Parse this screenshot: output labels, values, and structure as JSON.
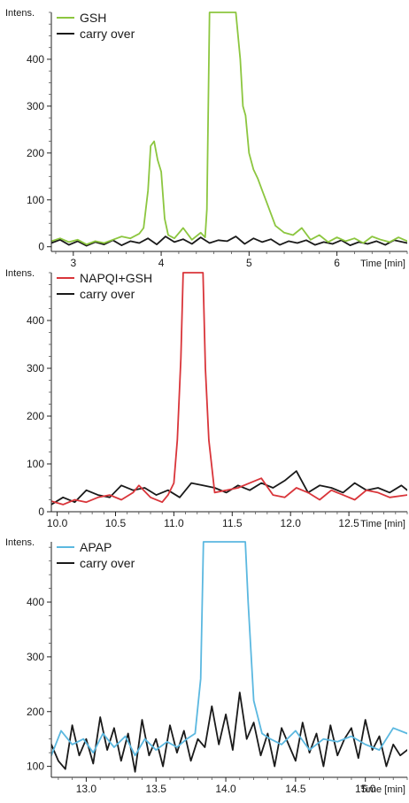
{
  "chart_data": [
    {
      "type": "line",
      "ylabel": "Intens.",
      "xlabel": "Time [min]",
      "xlim": [
        2.75,
        6.8
      ],
      "ylim": [
        -10,
        500
      ],
      "xticks": [
        3,
        4,
        5,
        6
      ],
      "yticks": [
        0,
        100,
        200,
        300,
        400
      ],
      "legend_position": "top-left",
      "series": [
        {
          "name": "GSH",
          "color": "#8cc63f",
          "x": [
            2.75,
            2.85,
            2.95,
            3.05,
            3.15,
            3.25,
            3.35,
            3.45,
            3.55,
            3.65,
            3.75,
            3.8,
            3.85,
            3.88,
            3.92,
            3.96,
            4.0,
            4.04,
            4.08,
            4.15,
            4.25,
            4.35,
            4.45,
            4.5,
            4.52,
            4.55,
            4.58,
            4.7,
            4.85,
            4.9,
            4.93,
            4.96,
            5.0,
            5.05,
            5.1,
            5.15,
            5.2,
            5.25,
            5.3,
            5.4,
            5.5,
            5.6,
            5.7,
            5.8,
            5.9,
            6.0,
            6.1,
            6.2,
            6.3,
            6.4,
            6.5,
            6.6,
            6.7,
            6.8
          ],
          "values": [
            12,
            18,
            10,
            15,
            5,
            12,
            8,
            15,
            22,
            18,
            28,
            40,
            120,
            215,
            225,
            185,
            160,
            60,
            25,
            18,
            40,
            15,
            30,
            20,
            80,
            500,
            500,
            500,
            500,
            400,
            300,
            280,
            200,
            165,
            145,
            120,
            95,
            70,
            45,
            30,
            25,
            40,
            15,
            25,
            10,
            20,
            12,
            18,
            8,
            22,
            15,
            10,
            20,
            12
          ]
        },
        {
          "name": "carry over",
          "color": "#1a1a1a",
          "x": [
            2.75,
            2.85,
            2.95,
            3.05,
            3.15,
            3.25,
            3.35,
            3.45,
            3.55,
            3.65,
            3.75,
            3.85,
            3.95,
            4.05,
            4.15,
            4.25,
            4.35,
            4.45,
            4.55,
            4.65,
            4.75,
            4.85,
            4.95,
            5.05,
            5.15,
            5.25,
            5.35,
            5.45,
            5.55,
            5.65,
            5.75,
            5.85,
            5.95,
            6.05,
            6.15,
            6.25,
            6.35,
            6.45,
            6.55,
            6.65,
            6.8
          ],
          "values": [
            8,
            15,
            4,
            12,
            2,
            10,
            5,
            14,
            3,
            12,
            8,
            18,
            5,
            22,
            10,
            16,
            6,
            20,
            8,
            14,
            12,
            22,
            6,
            18,
            10,
            16,
            4,
            12,
            8,
            14,
            4,
            10,
            6,
            14,
            3,
            10,
            6,
            12,
            4,
            14,
            8
          ]
        }
      ]
    },
    {
      "type": "line",
      "ylabel": "Intens.",
      "xlabel": "Time [min]",
      "xlim": [
        9.95,
        13.0
      ],
      "ylim": [
        0,
        500
      ],
      "xticks": [
        10.0,
        10.5,
        11.0,
        11.5,
        12.0,
        12.5
      ],
      "xtick_labels": [
        "10.0",
        "10.5",
        "11.0",
        "11.5",
        "12.0",
        "12.5"
      ],
      "yticks": [
        0,
        100,
        200,
        300,
        400
      ],
      "legend_position": "top-left",
      "series": [
        {
          "name": "NAPQI+GSH",
          "color": "#d9353a",
          "x": [
            9.95,
            10.05,
            10.15,
            10.25,
            10.35,
            10.45,
            10.55,
            10.65,
            10.7,
            10.8,
            10.9,
            10.95,
            11.0,
            11.03,
            11.06,
            11.08,
            11.1,
            11.12,
            11.25,
            11.27,
            11.3,
            11.35,
            11.45,
            11.55,
            11.65,
            11.75,
            11.85,
            11.95,
            12.05,
            12.15,
            12.25,
            12.35,
            12.45,
            12.55,
            12.65,
            12.75,
            12.85,
            13.0
          ],
          "values": [
            22,
            15,
            25,
            20,
            30,
            35,
            25,
            40,
            55,
            30,
            20,
            35,
            60,
            150,
            320,
            500,
            500,
            500,
            500,
            300,
            150,
            40,
            45,
            50,
            60,
            70,
            35,
            30,
            50,
            40,
            25,
            45,
            35,
            25,
            45,
            40,
            30,
            35
          ]
        },
        {
          "name": "carry over",
          "color": "#1a1a1a",
          "x": [
            9.95,
            10.05,
            10.15,
            10.25,
            10.35,
            10.45,
            10.55,
            10.65,
            10.75,
            10.85,
            10.95,
            11.05,
            11.15,
            11.25,
            11.35,
            11.45,
            11.55,
            11.65,
            11.75,
            11.85,
            11.95,
            12.05,
            12.15,
            12.25,
            12.35,
            12.45,
            12.55,
            12.65,
            12.75,
            12.85,
            12.95,
            13.0
          ],
          "values": [
            15,
            30,
            20,
            45,
            35,
            30,
            55,
            45,
            50,
            35,
            45,
            30,
            60,
            55,
            50,
            40,
            55,
            45,
            60,
            50,
            65,
            85,
            40,
            55,
            50,
            40,
            60,
            45,
            50,
            40,
            55,
            45
          ]
        }
      ]
    },
    {
      "type": "line",
      "ylabel": "Intens.",
      "xlabel": "Time [min]",
      "xlim": [
        12.75,
        15.3
      ],
      "ylim": [
        80,
        510
      ],
      "xticks": [
        13.0,
        13.5,
        14.0,
        14.5,
        15.0
      ],
      "xtick_labels": [
        "13.0",
        "13.5",
        "14.0",
        "14.5",
        "15.0"
      ],
      "yticks": [
        100,
        200,
        300,
        400
      ],
      "legend_position": "top-left",
      "series": [
        {
          "name": "APAP",
          "color": "#5bb8e0",
          "x": [
            12.75,
            12.82,
            12.9,
            12.98,
            13.05,
            13.12,
            13.2,
            13.28,
            13.35,
            13.42,
            13.5,
            13.58,
            13.65,
            13.72,
            13.78,
            13.82,
            13.84,
            13.86,
            14.14,
            14.16,
            14.2,
            14.26,
            14.32,
            14.4,
            14.5,
            14.6,
            14.7,
            14.8,
            14.9,
            15.0,
            15.1,
            15.2,
            15.3
          ],
          "values": [
            120,
            165,
            140,
            150,
            125,
            160,
            135,
            155,
            120,
            150,
            130,
            145,
            135,
            150,
            160,
            260,
            510,
            510,
            510,
            400,
            220,
            160,
            150,
            140,
            165,
            130,
            150,
            145,
            155,
            140,
            130,
            170,
            160
          ]
        },
        {
          "name": "carry over",
          "color": "#1a1a1a",
          "x": [
            12.75,
            12.8,
            12.85,
            12.9,
            12.95,
            13.0,
            13.05,
            13.1,
            13.15,
            13.2,
            13.25,
            13.3,
            13.35,
            13.4,
            13.45,
            13.5,
            13.55,
            13.6,
            13.65,
            13.7,
            13.75,
            13.8,
            13.85,
            13.9,
            13.95,
            14.0,
            14.05,
            14.1,
            14.15,
            14.2,
            14.25,
            14.3,
            14.35,
            14.4,
            14.45,
            14.5,
            14.55,
            14.6,
            14.65,
            14.7,
            14.75,
            14.8,
            14.85,
            14.9,
            14.95,
            15.0,
            15.05,
            15.1,
            15.15,
            15.2,
            15.25,
            15.3
          ],
          "values": [
            140,
            110,
            95,
            175,
            120,
            150,
            105,
            190,
            130,
            170,
            110,
            160,
            90,
            185,
            120,
            150,
            100,
            175,
            125,
            165,
            110,
            150,
            135,
            210,
            140,
            195,
            130,
            235,
            150,
            180,
            120,
            160,
            100,
            170,
            140,
            110,
            180,
            125,
            160,
            100,
            175,
            120,
            150,
            170,
            115,
            185,
            130,
            155,
            100,
            140,
            120,
            130
          ]
        }
      ]
    }
  ]
}
